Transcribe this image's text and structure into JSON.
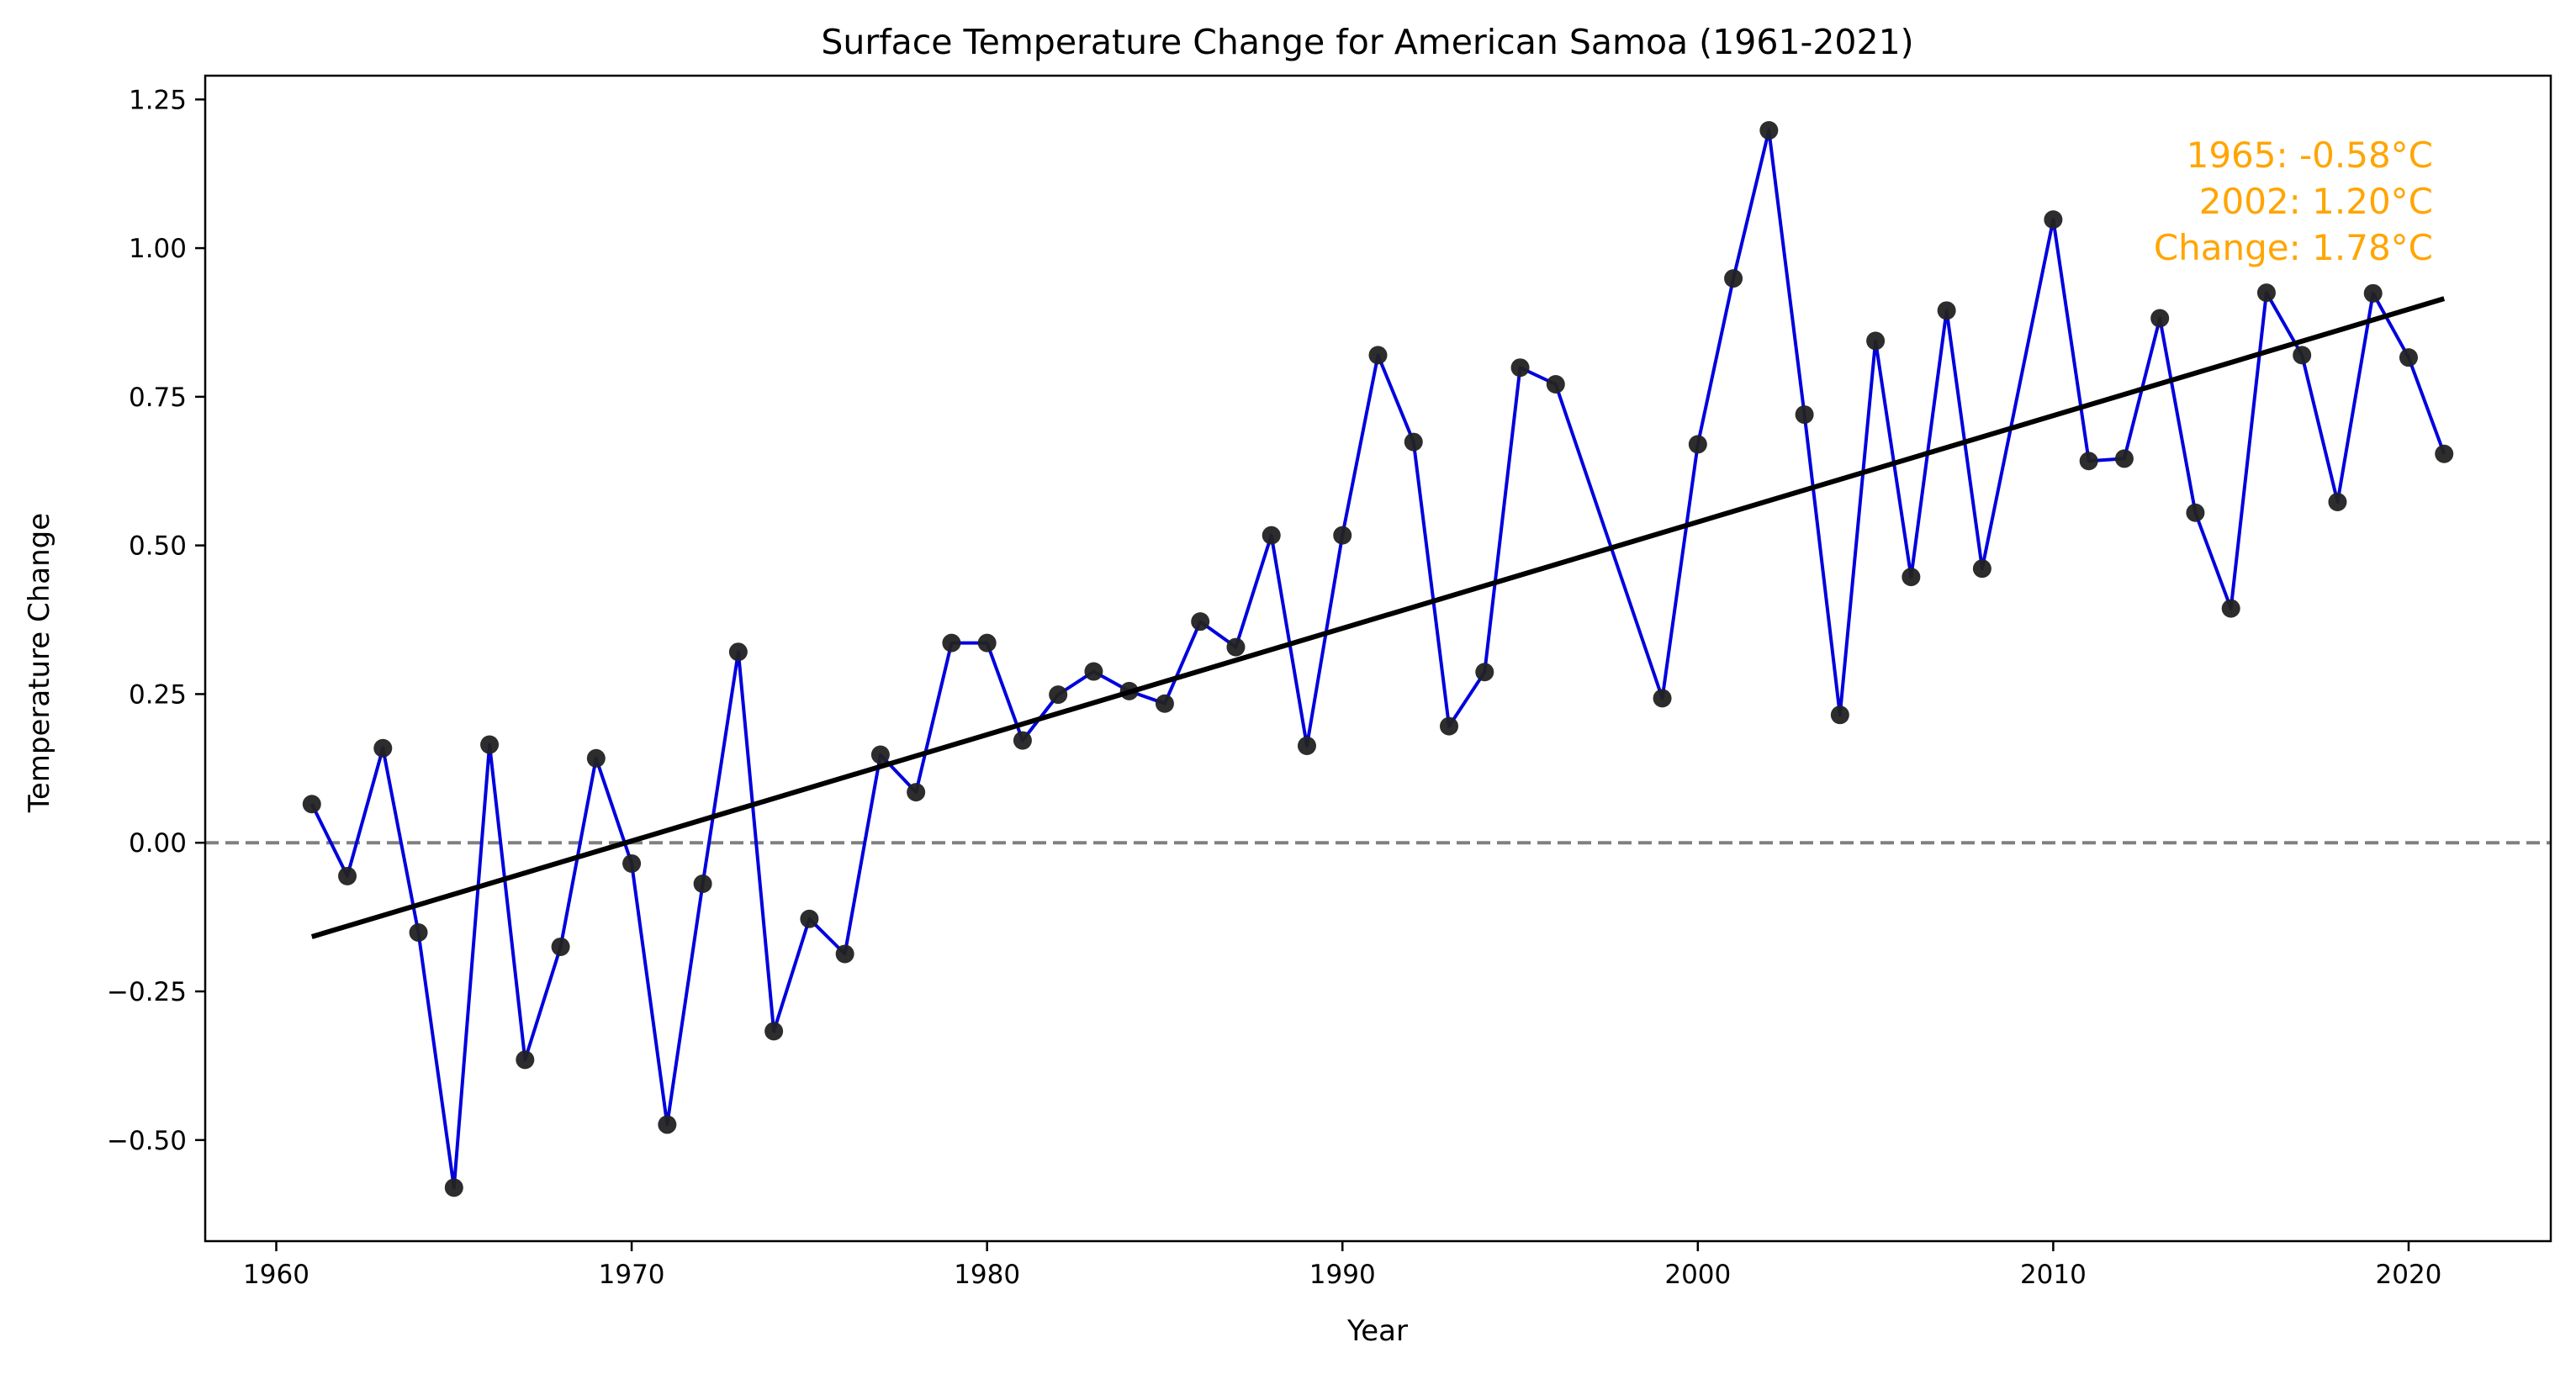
{
  "chart_data": {
    "type": "line",
    "title": "Surface Temperature Change for American Samoa (1961-2021)",
    "xlabel": "Year",
    "ylabel": "Temperature Change",
    "xlim": [
      1958,
      2024
    ],
    "ylim": [
      -0.67,
      1.29
    ],
    "xticks": [
      1960,
      1970,
      1980,
      1990,
      2000,
      2010,
      2020
    ],
    "yticks": [
      -0.5,
      -0.25,
      0.0,
      0.25,
      0.5,
      0.75,
      1.0,
      1.25
    ],
    "ytick_labels": [
      "−0.50",
      "−0.25",
      "0.00",
      "0.25",
      "0.50",
      "0.75",
      "1.00",
      "1.25"
    ],
    "grid": false,
    "reference_line": {
      "y": 0.0,
      "style": "dashed",
      "color": "#808080"
    },
    "series": [
      {
        "line_color": "#0000dd",
        "marker_color": "#222222",
        "x": [
          1961,
          1962,
          1963,
          1964,
          1965,
          1966,
          1967,
          1968,
          1969,
          1970,
          1971,
          1972,
          1973,
          1974,
          1975,
          1976,
          1977,
          1978,
          1979,
          1980,
          1981,
          1982,
          1983,
          1984,
          1985,
          1986,
          1987,
          1988,
          1989,
          1990,
          1991,
          1992,
          1993,
          1994,
          1995,
          1996,
          1999,
          2000,
          2001,
          2002,
          2003,
          2004,
          2005,
          2006,
          2007,
          2008,
          2010,
          2011,
          2012,
          2013,
          2014,
          2015,
          2016,
          2017,
          2018,
          2019,
          2020,
          2021
        ],
        "y": [
          0.065,
          -0.056,
          0.159,
          -0.151,
          -0.58,
          0.165,
          -0.365,
          -0.175,
          0.142,
          -0.035,
          -0.474,
          -0.069,
          0.321,
          -0.317,
          -0.128,
          -0.187,
          0.148,
          0.085,
          0.336,
          0.336,
          0.172,
          0.249,
          0.288,
          0.255,
          0.234,
          0.372,
          0.329,
          0.517,
          0.163,
          0.517,
          0.82,
          0.674,
          0.196,
          0.287,
          0.799,
          0.771,
          0.243,
          0.67,
          0.949,
          1.198,
          0.72,
          0.215,
          0.844,
          0.447,
          0.895,
          0.461,
          1.048,
          0.642,
          0.646,
          0.882,
          0.555,
          0.394,
          0.925,
          0.82,
          0.573,
          0.924,
          0.816,
          0.654
        ]
      }
    ],
    "trend_line": {
      "color": "#000000",
      "x": [
        1961,
        2021
      ],
      "y": [
        -0.158,
        0.915
      ]
    },
    "annotations": {
      "color": "#ffa500",
      "lines": [
        "1965: -0.58°C",
        "2002: 1.20°C",
        "Change: 1.78°C"
      ]
    }
  }
}
